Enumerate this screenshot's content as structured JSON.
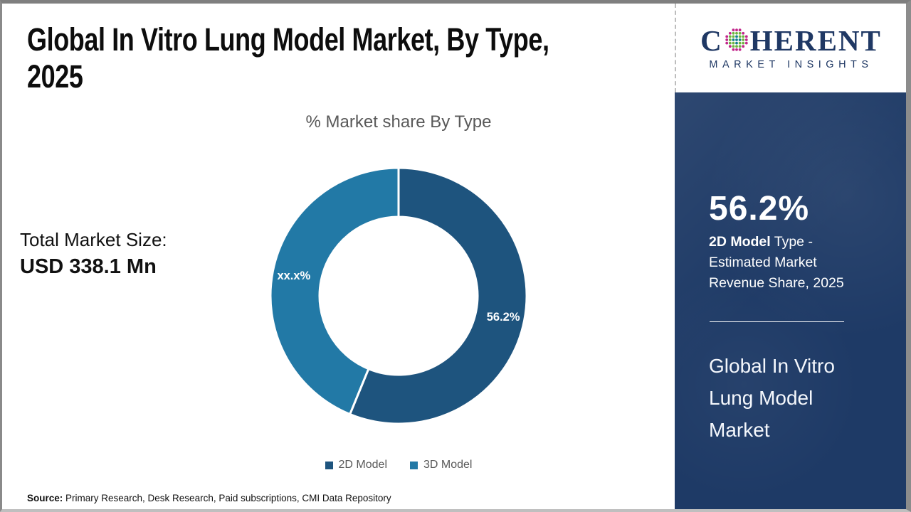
{
  "header": {
    "title": "Global In Vitro Lung Model Market, By Type, 2025"
  },
  "logo": {
    "prefix": "C",
    "suffix": "HERENT",
    "subtitle": "MARKET INSIGHTS",
    "color": "#1f3864",
    "globe_colors": {
      "inner": "#157f8d",
      "mid": "#6cb33f",
      "outer": "#c2268b"
    }
  },
  "chart_data": {
    "type": "pie",
    "variant": "donut",
    "title": "% Market share By Type",
    "categories": [
      "2D Model",
      "3D Model"
    ],
    "values": [
      56.2,
      43.8
    ],
    "slice_labels": [
      "56.2%",
      "xx.x%"
    ],
    "colors": [
      "#1e547e",
      "#2279a6"
    ],
    "start_angle_deg": 0,
    "direction": "clockwise",
    "legend_position": "bottom",
    "legend_text_color": "#595959",
    "label_text_color": "#ffffff"
  },
  "total_market": {
    "label": "Total Market Size:",
    "value": "USD 338.1 Mn"
  },
  "sidebar": {
    "bg": "#1e3a66",
    "stat_value": "56.2%",
    "stat_label_bold": "2D Model",
    "stat_label_rest": " Type - Estimated Market Revenue Share, 2025",
    "market_name": "Global In Vitro Lung Model Market"
  },
  "source": {
    "label": "Source:",
    "text": " Primary Research, Desk Research, Paid subscriptions, CMI Data Repository"
  }
}
